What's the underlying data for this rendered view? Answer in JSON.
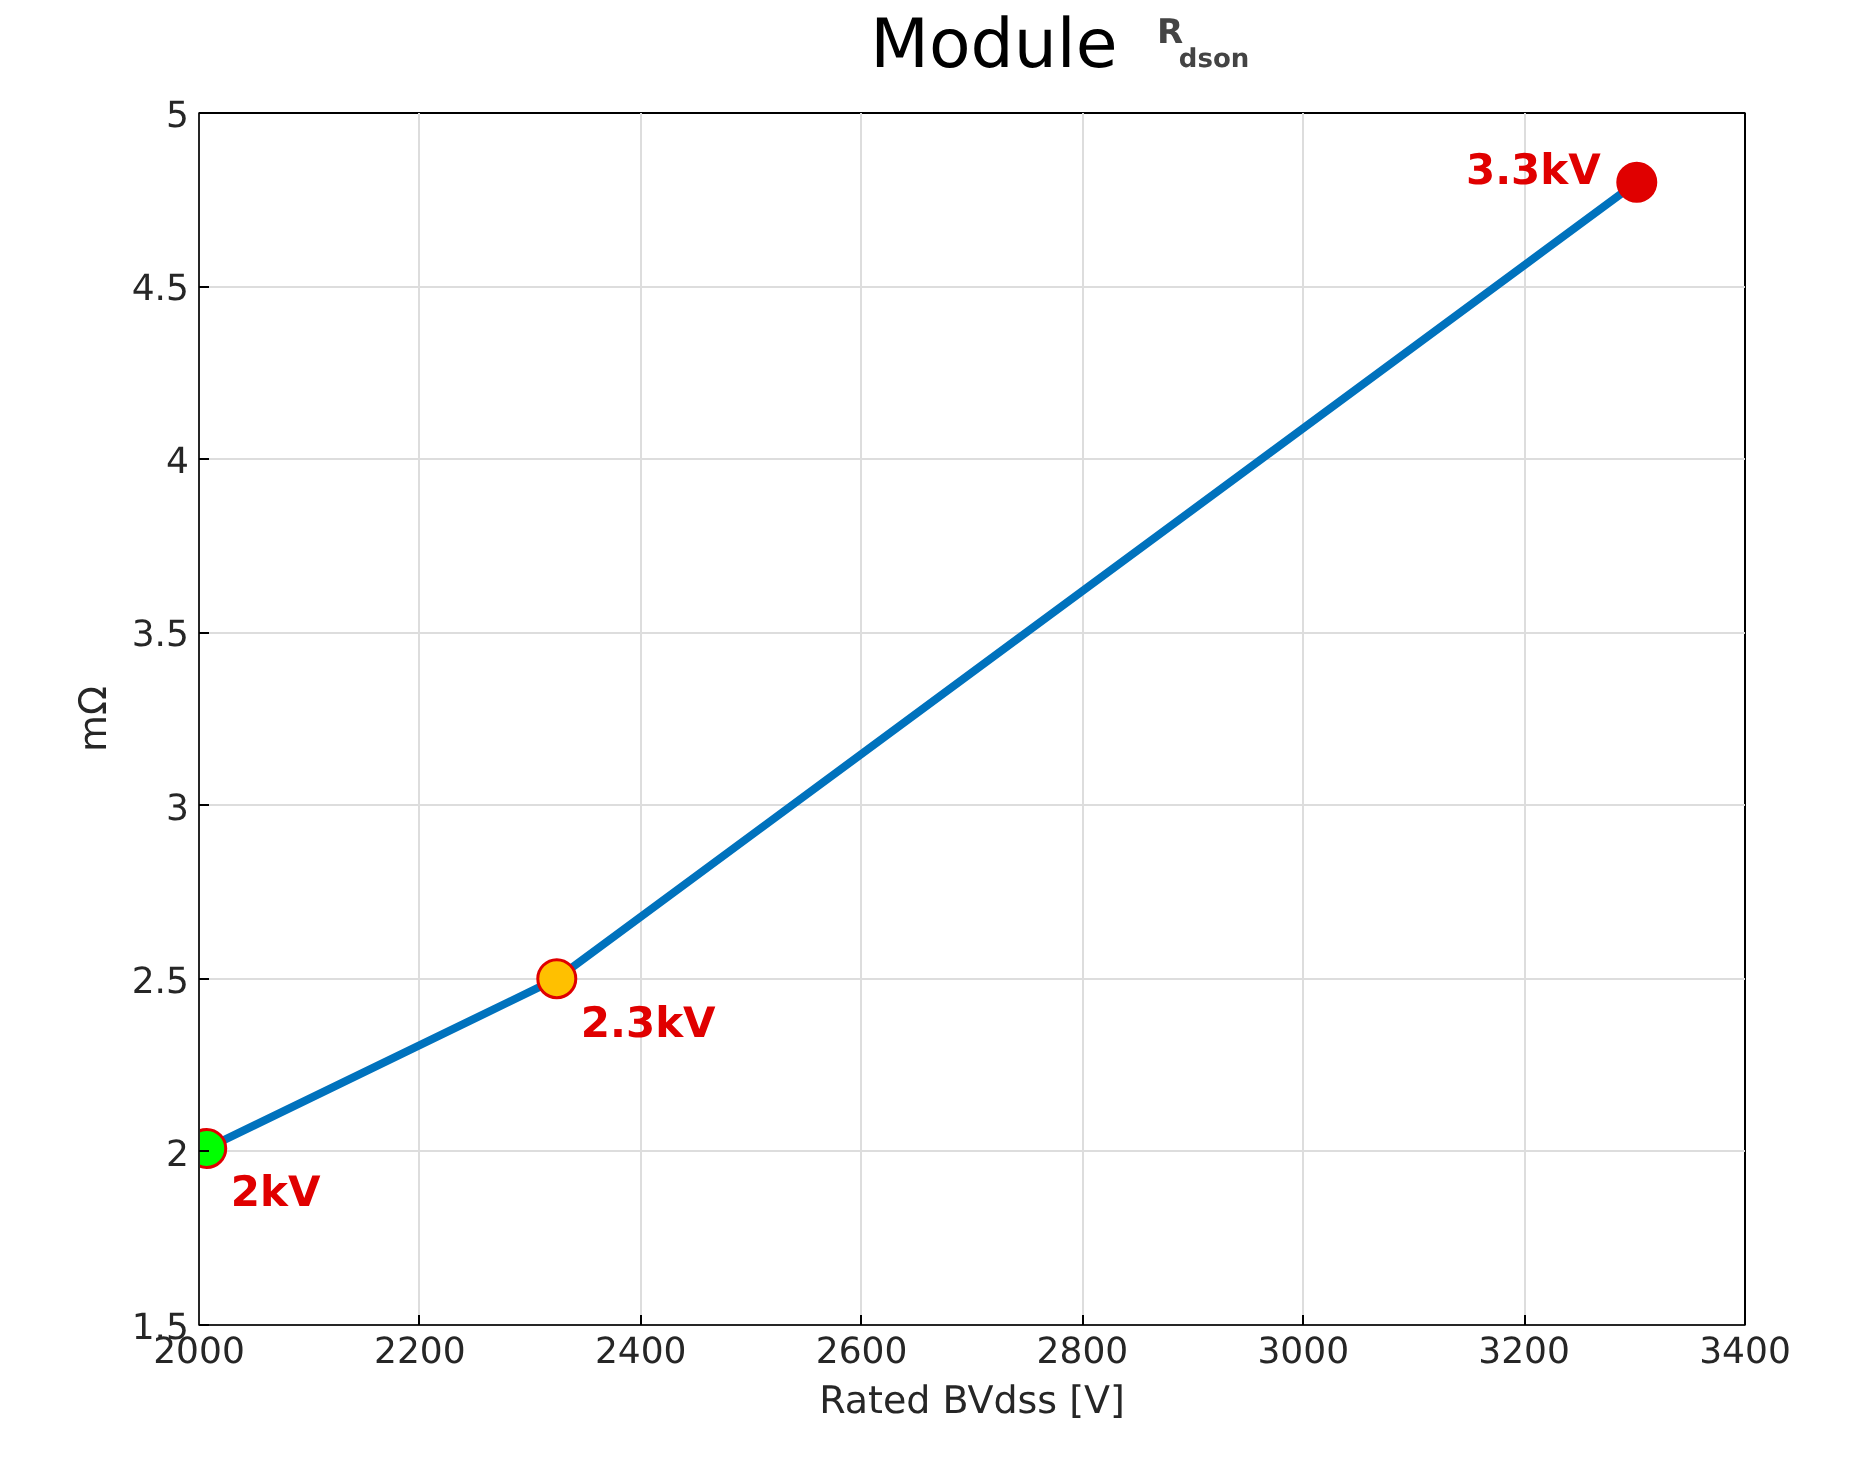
{
  "chart_data": {
    "type": "line",
    "title": "Module R$_{dson}$",
    "xlabel": "Rated BVdss [V]",
    "ylabel": "mΩ",
    "x": [
      2007,
      2324,
      3302
    ],
    "series": [
      {
        "color": "#0072bd",
        "colors": [
          "#00ff00",
          "#ffc000",
          "#e00000"
        ],
        "values": [
          2.01,
          2.5,
          4.8
        ]
      }
    ],
    "marker": "circle",
    "line_style": "solid",
    "grid": true,
    "xlim": [
      2000,
      3400
    ],
    "xticks": [
      2000,
      2200,
      2400,
      2600,
      2800,
      3000,
      3200,
      3400
    ],
    "ylim": [
      1.5,
      5
    ],
    "yticks": [
      1.5,
      2,
      2.5,
      3,
      3.5,
      4,
      4.5,
      5
    ],
    "annotations": [
      {
        "text": "2kV",
        "x": 2007,
        "y": 2.01
      },
      {
        "text": "2.3kV",
        "x": 2324,
        "y": 2.5
      },
      {
        "text": "3.3kV",
        "x": 3302,
        "y": 4.8
      }
    ]
  }
}
